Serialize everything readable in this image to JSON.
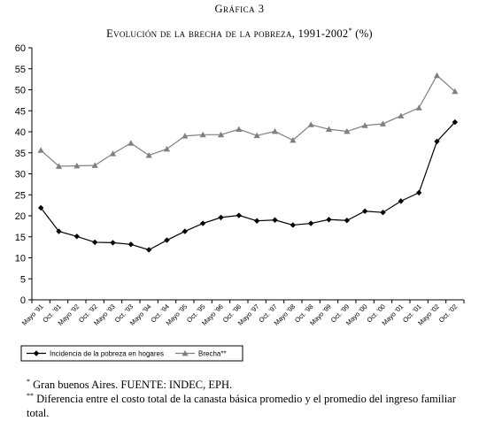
{
  "heading": "Gráfica 3",
  "title": "Evolución de la brecha de la pobreza, 1991-2002",
  "title_mark": "*",
  "title_unit": "(%)",
  "notes": [
    {
      "mark": "*",
      "text": "Gran buenos Aires. FUENTE: INDEC, EPH."
    },
    {
      "mark": "**",
      "text": "Diferencia entre el costo total de la canasta básica promedio y el promedio del ingreso familiar total."
    }
  ],
  "chart_data": {
    "type": "line",
    "ylim": [
      0,
      60
    ],
    "yticks": [
      0,
      5,
      10,
      15,
      20,
      25,
      30,
      35,
      40,
      45,
      50,
      55,
      60
    ],
    "grid": false,
    "legend": "bottom",
    "categories": [
      "Mayo '91",
      "Oct. '91",
      "Mayo '92",
      "Oct. '92",
      "Mayo '93",
      "Oct. '93",
      "Mayo '94",
      "Oct. '94",
      "Mayo '95",
      "Oct. '95",
      "Mayo '96",
      "Oct. '96",
      "Mayo '97",
      "Oct. '97",
      "Mayo '98",
      "Oct. '98",
      "Mayo '99",
      "Oct. '99",
      "Mayo '00",
      "Oct. '00",
      "Mayo '01",
      "Oct. '01",
      "Mayo '02",
      "Oct. '02"
    ],
    "series": [
      {
        "name": "Incidencia de la pobreza en hogares",
        "color": "#000000",
        "marker": "diamond",
        "values": [
          21.9,
          16.3,
          15.1,
          13.7,
          13.6,
          13.2,
          11.9,
          14.2,
          16.3,
          18.2,
          19.6,
          20.1,
          18.8,
          19.0,
          17.8,
          18.2,
          19.1,
          18.9,
          21.1,
          20.8,
          23.5,
          25.5,
          37.7,
          42.3
        ]
      },
      {
        "name": "Brecha**",
        "color": "#808080",
        "marker": "triangle",
        "values": [
          35.6,
          31.8,
          31.9,
          32.0,
          34.8,
          37.3,
          34.4,
          35.9,
          39.0,
          39.3,
          39.3,
          40.6,
          39.1,
          40.1,
          38.0,
          41.7,
          40.6,
          40.1,
          41.5,
          41.9,
          43.8,
          45.7,
          53.4,
          49.6
        ]
      }
    ]
  }
}
